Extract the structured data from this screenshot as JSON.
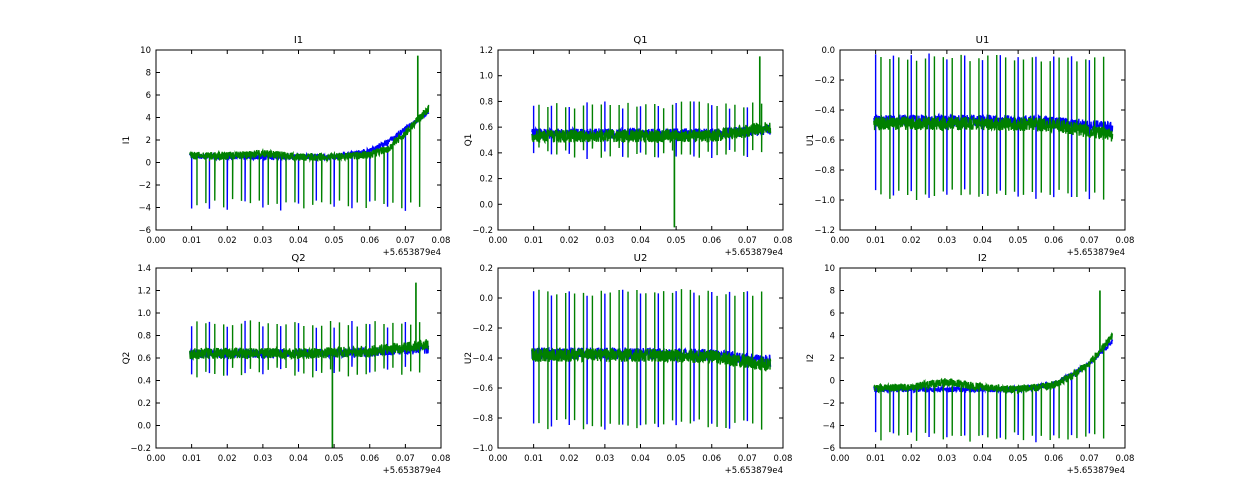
{
  "chart_data": [
    {
      "type": "line",
      "title": "I1",
      "ylabel": "I1",
      "xlabel": "",
      "xlim": [
        0.0,
        0.08
      ],
      "ylim": [
        -6,
        10
      ],
      "xticks": [
        "0.00",
        "0.01",
        "0.02",
        "0.03",
        "0.04",
        "0.05",
        "0.06",
        "0.07",
        "0.08"
      ],
      "yticks": [
        "−6",
        "−4",
        "−2",
        "0",
        "2",
        "4",
        "6",
        "8",
        "10"
      ],
      "ytick_values": [
        -6,
        -4,
        -2,
        0,
        2,
        4,
        6,
        8,
        10
      ],
      "offset_label": "+5.653879e4",
      "series": [
        {
          "name": "blue",
          "color": "#0000ff",
          "base": [
            [
              0.0095,
              0.6
            ],
            [
              0.02,
              0.5
            ],
            [
              0.03,
              0.5
            ],
            [
              0.04,
              0.5
            ],
            [
              0.05,
              0.5
            ],
            [
              0.06,
              1.0
            ],
            [
              0.065,
              1.8
            ],
            [
              0.07,
              3.0
            ],
            [
              0.0765,
              4.5
            ]
          ],
          "noise": 0.25,
          "spikes": {
            "start": 0.01,
            "step": 0.005,
            "end": 0.073,
            "low": -4.3,
            "high": null
          }
        },
        {
          "name": "green",
          "color": "#008000",
          "base": [
            [
              0.0095,
              0.6
            ],
            [
              0.02,
              0.6
            ],
            [
              0.03,
              0.8
            ],
            [
              0.04,
              0.5
            ],
            [
              0.05,
              0.5
            ],
            [
              0.06,
              0.7
            ],
            [
              0.065,
              1.2
            ],
            [
              0.07,
              2.6
            ],
            [
              0.0765,
              4.8
            ]
          ],
          "noise": 0.35,
          "spikes": {
            "start": 0.0115,
            "step": 0.0025,
            "end": 0.075,
            "low": -4.2,
            "high": null
          },
          "peak": [
            0.0735,
            9.5
          ]
        }
      ]
    },
    {
      "type": "line",
      "title": "Q1",
      "ylabel": "Q1",
      "xlabel": "",
      "xlim": [
        0.0,
        0.08
      ],
      "ylim": [
        -0.2,
        1.2
      ],
      "xticks": [
        "0.00",
        "0.01",
        "0.02",
        "0.03",
        "0.04",
        "0.05",
        "0.06",
        "0.07",
        "0.08"
      ],
      "yticks": [
        "−0.2",
        "0.0",
        "0.2",
        "0.4",
        "0.6",
        "0.8",
        "1.0",
        "1.2"
      ],
      "ytick_values": [
        -0.2,
        0.0,
        0.2,
        0.4,
        0.6,
        0.8,
        1.0,
        1.2
      ],
      "offset_label": "+5.653879e4",
      "series": [
        {
          "name": "blue",
          "color": "#0000ff",
          "base": [
            [
              0.0095,
              0.55
            ],
            [
              0.04,
              0.55
            ],
            [
              0.06,
              0.55
            ],
            [
              0.0765,
              0.58
            ]
          ],
          "noise": 0.04,
          "spikes": {
            "start": 0.01,
            "step": 0.005,
            "end": 0.074,
            "low": 0.35,
            "high": 0.8
          }
        },
        {
          "name": "green",
          "color": "#008000",
          "base": [
            [
              0.0095,
              0.53
            ],
            [
              0.04,
              0.53
            ],
            [
              0.06,
              0.53
            ],
            [
              0.0765,
              0.6
            ]
          ],
          "noise": 0.05,
          "spikes": {
            "start": 0.0115,
            "step": 0.0025,
            "end": 0.075,
            "low": 0.36,
            "high": 0.8
          },
          "peak": [
            0.0735,
            1.15
          ],
          "dip": [
            0.0495,
            -0.18
          ]
        }
      ]
    },
    {
      "type": "line",
      "title": "U1",
      "ylabel": "U1",
      "xlabel": "",
      "xlim": [
        0.0,
        0.08
      ],
      "ylim": [
        -1.2,
        0.0
      ],
      "xticks": [
        "0.00",
        "0.01",
        "0.02",
        "0.03",
        "0.04",
        "0.05",
        "0.06",
        "0.07",
        "0.08"
      ],
      "yticks": [
        "−1.2",
        "−1.0",
        "−0.8",
        "−0.6",
        "−0.4",
        "−0.2",
        "0.0"
      ],
      "ytick_values": [
        -1.2,
        -1.0,
        -0.8,
        -0.6,
        -0.4,
        -0.2,
        0.0
      ],
      "offset_label": "+5.653879e4",
      "series": [
        {
          "name": "blue",
          "color": "#0000ff",
          "base": [
            [
              0.0095,
              -0.47
            ],
            [
              0.04,
              -0.47
            ],
            [
              0.06,
              -0.48
            ],
            [
              0.0765,
              -0.52
            ]
          ],
          "noise": 0.04,
          "spikes": {
            "start": 0.01,
            "step": 0.005,
            "end": 0.074,
            "low": -1.0,
            "high": -0.02
          }
        },
        {
          "name": "green",
          "color": "#008000",
          "base": [
            [
              0.0095,
              -0.49
            ],
            [
              0.04,
              -0.49
            ],
            [
              0.06,
              -0.5
            ],
            [
              0.0765,
              -0.57
            ]
          ],
          "noise": 0.045,
          "spikes": {
            "start": 0.0115,
            "step": 0.0025,
            "end": 0.075,
            "low": -1.0,
            "high": -0.03
          }
        }
      ]
    },
    {
      "type": "line",
      "title": "Q2",
      "ylabel": "Q2",
      "xlabel": "",
      "xlim": [
        0.0,
        0.08
      ],
      "ylim": [
        -0.2,
        1.4
      ],
      "xticks": [
        "0.00",
        "0.01",
        "0.02",
        "0.03",
        "0.04",
        "0.05",
        "0.06",
        "0.07",
        "0.08"
      ],
      "yticks": [
        "−0.2",
        "0.0",
        "0.2",
        "0.4",
        "0.6",
        "0.8",
        "1.0",
        "1.2",
        "1.4"
      ],
      "ytick_values": [
        -0.2,
        0.0,
        0.2,
        0.4,
        0.6,
        0.8,
        1.0,
        1.2,
        1.4
      ],
      "offset_label": "+5.653879e4",
      "series": [
        {
          "name": "blue",
          "color": "#0000ff",
          "base": [
            [
              0.0095,
              0.64
            ],
            [
              0.04,
              0.64
            ],
            [
              0.06,
              0.65
            ],
            [
              0.0765,
              0.68
            ]
          ],
          "noise": 0.04,
          "spikes": {
            "start": 0.01,
            "step": 0.005,
            "end": 0.074,
            "low": 0.43,
            "high": 0.93
          }
        },
        {
          "name": "green",
          "color": "#008000",
          "base": [
            [
              0.0095,
              0.64
            ],
            [
              0.04,
              0.64
            ],
            [
              0.06,
              0.66
            ],
            [
              0.0765,
              0.72
            ]
          ],
          "noise": 0.05,
          "spikes": {
            "start": 0.0115,
            "step": 0.0025,
            "end": 0.075,
            "low": 0.42,
            "high": 0.94
          },
          "peak": [
            0.073,
            1.27
          ],
          "dip": [
            0.0495,
            -0.2
          ]
        }
      ]
    },
    {
      "type": "line",
      "title": "U2",
      "ylabel": "U2",
      "xlabel": "",
      "xlim": [
        0.0,
        0.08
      ],
      "ylim": [
        -1.0,
        0.2
      ],
      "xticks": [
        "0.00",
        "0.01",
        "0.02",
        "0.03",
        "0.04",
        "0.05",
        "0.06",
        "0.07",
        "0.08"
      ],
      "yticks": [
        "−1.0",
        "−0.8",
        "−0.6",
        "−0.4",
        "−0.2",
        "0.0",
        "0.2"
      ],
      "ytick_values": [
        -1.0,
        -0.8,
        -0.6,
        -0.4,
        -0.2,
        0.0,
        0.2
      ],
      "offset_label": "+5.653879e4",
      "series": [
        {
          "name": "blue",
          "color": "#0000ff",
          "base": [
            [
              0.0095,
              -0.37
            ],
            [
              0.04,
              -0.37
            ],
            [
              0.06,
              -0.38
            ],
            [
              0.0765,
              -0.42
            ]
          ],
          "noise": 0.04,
          "spikes": {
            "start": 0.01,
            "step": 0.005,
            "end": 0.074,
            "low": -0.88,
            "high": 0.06
          }
        },
        {
          "name": "green",
          "color": "#008000",
          "base": [
            [
              0.0095,
              -0.38
            ],
            [
              0.04,
              -0.38
            ],
            [
              0.06,
              -0.39
            ],
            [
              0.0765,
              -0.45
            ]
          ],
          "noise": 0.045,
          "spikes": {
            "start": 0.0115,
            "step": 0.0025,
            "end": 0.075,
            "low": -0.88,
            "high": 0.06
          }
        }
      ]
    },
    {
      "type": "line",
      "title": "I2",
      "ylabel": "I2",
      "xlabel": "",
      "xlim": [
        0.0,
        0.08
      ],
      "ylim": [
        -6,
        10
      ],
      "xticks": [
        "0.00",
        "0.01",
        "0.02",
        "0.03",
        "0.04",
        "0.05",
        "0.06",
        "0.07",
        "0.08"
      ],
      "yticks": [
        "−6",
        "−4",
        "−2",
        "0",
        "2",
        "4",
        "6",
        "8",
        "10"
      ],
      "ytick_values": [
        -6,
        -4,
        -2,
        0,
        2,
        4,
        6,
        8,
        10
      ],
      "offset_label": "+5.653879e4",
      "series": [
        {
          "name": "blue",
          "color": "#0000ff",
          "base": [
            [
              0.0095,
              -0.8
            ],
            [
              0.02,
              -0.8
            ],
            [
              0.03,
              -0.8
            ],
            [
              0.04,
              -0.8
            ],
            [
              0.05,
              -0.8
            ],
            [
              0.06,
              -0.3
            ],
            [
              0.065,
              0.5
            ],
            [
              0.07,
              1.5
            ],
            [
              0.0765,
              3.5
            ]
          ],
          "noise": 0.25,
          "spikes": {
            "start": 0.01,
            "step": 0.005,
            "end": 0.073,
            "low": -5.5,
            "high": null
          }
        },
        {
          "name": "green",
          "color": "#008000",
          "base": [
            [
              0.0095,
              -0.7
            ],
            [
              0.02,
              -0.6
            ],
            [
              0.03,
              -0.1
            ],
            [
              0.04,
              -0.6
            ],
            [
              0.05,
              -0.8
            ],
            [
              0.06,
              -0.4
            ],
            [
              0.065,
              0.4
            ],
            [
              0.07,
              1.5
            ],
            [
              0.0765,
              4.0
            ]
          ],
          "noise": 0.35,
          "spikes": {
            "start": 0.0115,
            "step": 0.0025,
            "end": 0.075,
            "low": -5.5,
            "high": null
          },
          "peak": [
            0.073,
            8.0
          ]
        }
      ]
    }
  ]
}
